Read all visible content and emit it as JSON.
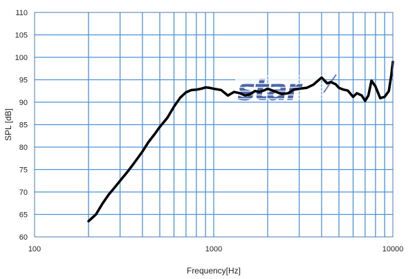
{
  "chart_data": {
    "type": "line",
    "title": "",
    "xlabel": "Frequency[Hz]",
    "ylabel": "SPL [dB]",
    "xscale": "log",
    "xlim": [
      100,
      10000
    ],
    "ylim": [
      60,
      110
    ],
    "x_tick_labels": [
      "100",
      "1000",
      "10000"
    ],
    "y_ticks": [
      60,
      65,
      70,
      75,
      80,
      85,
      90,
      95,
      100,
      105,
      110
    ],
    "grid": true,
    "grid_color": "#4a90d9",
    "line_color": "#000000",
    "watermark": "star",
    "watermark_color": "#2a4a9a",
    "series": [
      {
        "x": [
          200,
          220,
          240,
          260,
          280,
          300,
          330,
          360,
          400,
          430,
          470,
          500,
          550,
          600,
          650,
          700,
          750,
          800,
          850,
          900,
          950,
          1000,
          1100,
          1200,
          1300,
          1400,
          1500,
          1600,
          1700,
          1800,
          1900,
          2000,
          2200,
          2400,
          2600,
          2800,
          3000,
          3300,
          3600,
          4000,
          4300,
          4500,
          4800,
          5000,
          5300,
          5600,
          6000,
          6300,
          6700,
          7000,
          7300,
          7600,
          8000,
          8500,
          9000,
          9500,
          9800,
          10000
        ],
        "y": [
          63.5,
          65,
          67.5,
          69.5,
          71,
          72.5,
          74.5,
          76.5,
          79,
          81,
          83,
          84.5,
          86.5,
          89,
          91,
          92.2,
          92.7,
          92.8,
          93.0,
          93.3,
          93.2,
          93.0,
          92.7,
          91.5,
          92.3,
          92.0,
          91.5,
          91.8,
          92.5,
          92.3,
          92.6,
          93.0,
          92.4,
          91.8,
          92.0,
          92.8,
          93.0,
          93.2,
          93.9,
          95.5,
          94.2,
          94.5,
          94.0,
          93.2,
          92.8,
          92.6,
          91.2,
          92.0,
          91.5,
          90.3,
          91.5,
          94.8,
          93.5,
          90.9,
          91.2,
          92.5,
          96.0,
          99.0
        ]
      }
    ]
  }
}
